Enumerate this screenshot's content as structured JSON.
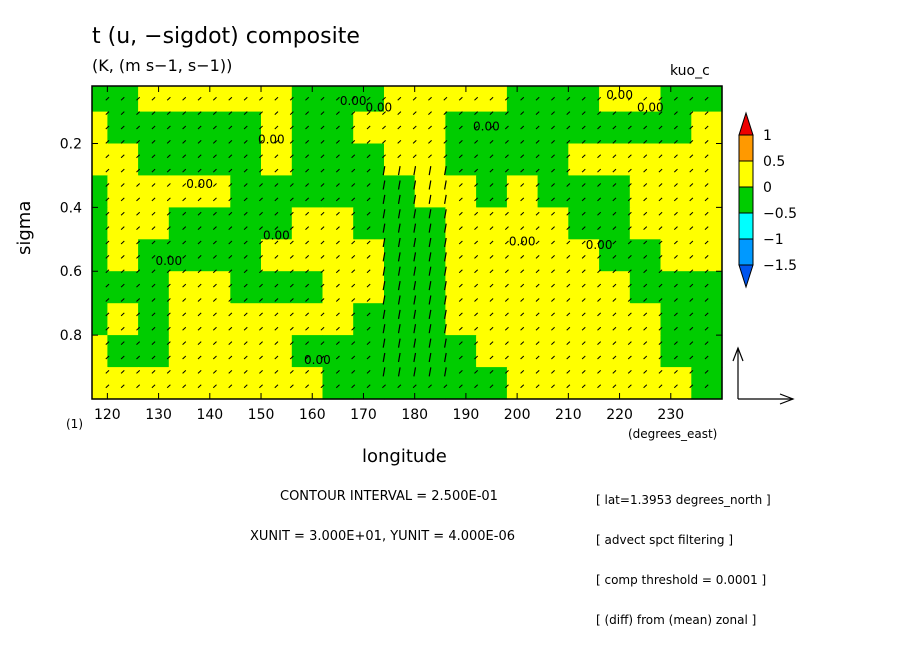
{
  "header": {
    "title": "t (u, −sigdot) composite",
    "subtitle": "(K, (m s−1, s−1))",
    "dataset": "kuo_c"
  },
  "footer": {
    "contour_interval": "CONTOUR INTERVAL = 2.500E-01",
    "vector_units": "XUNIT = 3.000E+01, YUNIT = 4.000E-06",
    "notes": [
      "[ lat=1.3953 degrees_north ]",
      "[ advect spct filtering ]",
      "[ comp threshold = 0.0001 ]",
      "[ (diff) from (mean) zonal ]"
    ]
  },
  "colors": {
    "positive_fill": "#ffff00",
    "negative_fill": "#00cc00",
    "cbar": [
      "#ee0000",
      "#ff9900",
      "#ffff00",
      "#00cc00",
      "#00ffff",
      "#0099ff",
      "#0055ee"
    ]
  },
  "chart_data": {
    "type": "heatmap",
    "title": "t (u, −sigdot) composite",
    "xlabel": "longitude",
    "ylabel": "sigma",
    "x_units": "(degrees_east)",
    "y_units": "(1)",
    "xlim": [
      117,
      240
    ],
    "ylim": [
      1.0,
      0.02
    ],
    "x_ticks": [
      120,
      130,
      140,
      150,
      160,
      170,
      180,
      190,
      200,
      210,
      220,
      230
    ],
    "y_ticks": [
      0.2,
      0.4,
      0.6,
      0.8
    ],
    "contour_labels": [
      "0.00",
      "0.00",
      "0.00",
      "0.00",
      "0.00",
      "0.00",
      "0.00",
      "0.00",
      "0.00",
      "0.00",
      "0.00",
      "0.00"
    ],
    "contour_label_positions": [
      [
        152,
        0.2
      ],
      [
        138,
        0.34
      ],
      [
        153,
        0.5
      ],
      [
        132,
        0.58
      ],
      [
        161,
        0.89
      ],
      [
        168,
        0.08
      ],
      [
        173,
        0.1
      ],
      [
        194,
        0.16
      ],
      [
        220,
        0.06
      ],
      [
        226,
        0.1
      ],
      [
        201,
        0.52
      ],
      [
        216,
        0.53
      ]
    ],
    "colorbar": {
      "labels": [
        "1",
        "0.5",
        "0",
        "−0.5",
        "−1",
        "−1.5"
      ],
      "levels": [
        1,
        0.5,
        0,
        -0.5,
        -1,
        -1.5
      ]
    },
    "field_sign_grid": {
      "x": [
        117,
        123,
        129,
        135,
        141,
        147,
        153,
        159,
        165,
        171,
        177,
        183,
        189,
        195,
        201,
        207,
        213,
        219,
        225,
        231,
        237
      ],
      "sigma": [
        0.05,
        0.15,
        0.25,
        0.35,
        0.45,
        0.55,
        0.65,
        0.75,
        0.85,
        0.95
      ],
      "sign": [
        [
          -1,
          -1,
          1,
          1,
          1,
          1,
          1,
          -1,
          -1,
          -1,
          1,
          1,
          1,
          1,
          -1,
          -1,
          -1,
          1,
          1,
          -1,
          -1
        ],
        [
          1,
          -1,
          -1,
          -1,
          -1,
          -1,
          1,
          -1,
          -1,
          1,
          1,
          1,
          -1,
          -1,
          -1,
          -1,
          -1,
          -1,
          -1,
          -1,
          1
        ],
        [
          1,
          1,
          -1,
          -1,
          -1,
          -1,
          1,
          -1,
          -1,
          -1,
          1,
          1,
          -1,
          -1,
          -1,
          -1,
          1,
          1,
          1,
          1,
          1
        ],
        [
          -1,
          1,
          1,
          1,
          1,
          -1,
          -1,
          -1,
          -1,
          -1,
          -1,
          1,
          1,
          -1,
          1,
          -1,
          -1,
          -1,
          1,
          1,
          1
        ],
        [
          -1,
          1,
          1,
          -1,
          -1,
          -1,
          -1,
          1,
          1,
          -1,
          -1,
          -1,
          1,
          1,
          1,
          1,
          -1,
          -1,
          1,
          1,
          1
        ],
        [
          -1,
          1,
          -1,
          -1,
          -1,
          -1,
          1,
          1,
          1,
          1,
          -1,
          -1,
          1,
          1,
          1,
          1,
          1,
          -1,
          -1,
          1,
          1
        ],
        [
          -1,
          -1,
          -1,
          1,
          1,
          -1,
          -1,
          -1,
          1,
          1,
          -1,
          -1,
          1,
          1,
          1,
          1,
          1,
          1,
          -1,
          -1,
          -1
        ],
        [
          -1,
          1,
          -1,
          1,
          1,
          1,
          1,
          1,
          1,
          -1,
          -1,
          -1,
          1,
          1,
          1,
          1,
          1,
          1,
          1,
          -1,
          -1
        ],
        [
          1,
          -1,
          -1,
          1,
          1,
          1,
          1,
          -1,
          -1,
          -1,
          -1,
          -1,
          -1,
          1,
          1,
          1,
          1,
          1,
          1,
          -1,
          -1
        ],
        [
          1,
          1,
          1,
          1,
          1,
          1,
          1,
          1,
          -1,
          -1,
          -1,
          -1,
          -1,
          -1,
          1,
          1,
          1,
          1,
          1,
          1,
          -1
        ]
      ]
    }
  }
}
